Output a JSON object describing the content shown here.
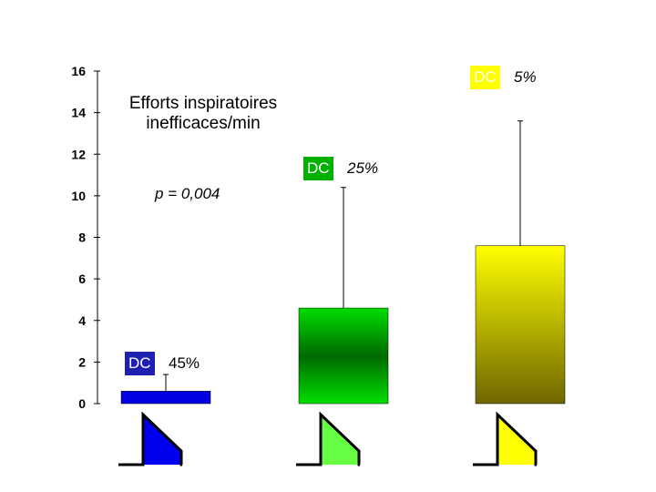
{
  "chart_data": {
    "type": "bar",
    "title": "Efforts inspiratoires inefficaces/min",
    "annotation": "p = 0,004",
    "ylim": [
      0,
      16
    ],
    "yticks": [
      "0",
      "2",
      "4",
      "6",
      "8",
      "10",
      "12",
      "14",
      "16"
    ],
    "bars": [
      {
        "value": 0.6,
        "error_upper": 1.4,
        "color_top": "#0000e0",
        "color_bottom": "#0000e0",
        "dc_label": "DC",
        "dc_pct": "45%",
        "dc_color": "#2020b0",
        "dc_text_color": "#ffffff",
        "icon_color": "#0000ee"
      },
      {
        "value": 4.6,
        "error_upper": 10.4,
        "color_top": "#00dd00",
        "color_bottom": "#00dd00",
        "dc_label": "DC",
        "dc_pct": "25%",
        "dc_color": "#00b000",
        "dc_text_color": "#ffffff",
        "icon_color": "#66ff44"
      },
      {
        "value": 7.6,
        "error_upper": 13.6,
        "color_top": "#ffff00",
        "color_bottom": "#6e6600",
        "dc_label": "DC",
        "dc_pct": "5%",
        "dc_color": "#ffff00",
        "dc_text_color": "#ffffff",
        "icon_color": "#ffff00"
      }
    ]
  }
}
